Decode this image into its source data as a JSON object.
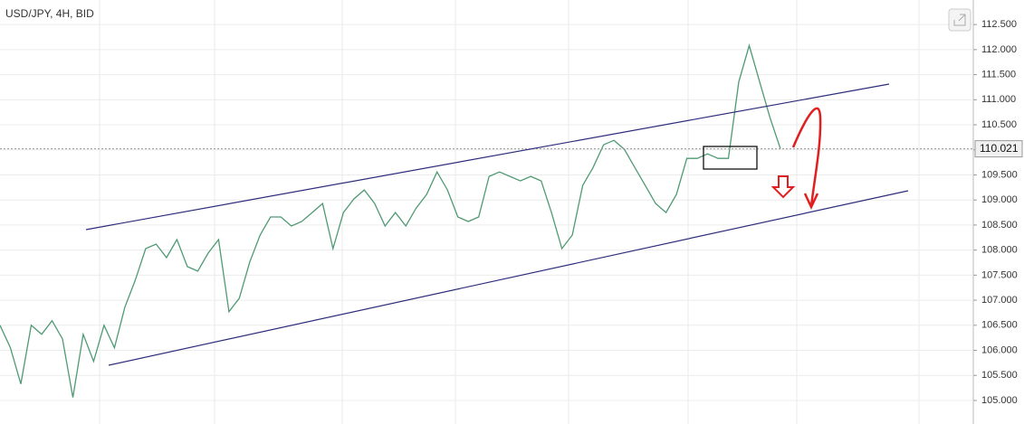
{
  "chart_data": {
    "type": "line",
    "title": "USD/JPY, 4H, BID",
    "color": "#4f9a74",
    "values": [
      106.5,
      106.05,
      105.33,
      106.5,
      106.32,
      106.59,
      106.23,
      105.06,
      106.32,
      105.78,
      106.5,
      106.05,
      106.86,
      107.4,
      108.03,
      108.12,
      107.85,
      108.21,
      107.67,
      107.58,
      107.94,
      108.21,
      106.77,
      107.04,
      107.76,
      108.3,
      108.66,
      108.66,
      108.48,
      108.57,
      108.75,
      108.93,
      108.03,
      108.75,
      109.02,
      109.2,
      108.93,
      108.48,
      108.75,
      108.48,
      108.84,
      109.11,
      109.56,
      109.2,
      108.66,
      108.57,
      108.66,
      109.47,
      109.56,
      109.47,
      109.38,
      109.47,
      109.38,
      108.75,
      108.03,
      108.3,
      109.29,
      109.65,
      110.1,
      110.19,
      110.01,
      109.65,
      109.29,
      108.93,
      108.75,
      109.11,
      109.83,
      109.83,
      109.92,
      109.83,
      109.83,
      111.36,
      112.08,
      111.36,
      110.64,
      110.02
    ],
    "ylim": [
      104.53,
      112.99
    ],
    "yticks": [
      {
        "value": 105,
        "label": "105.000"
      },
      {
        "value": 105.5,
        "label": "105.500"
      },
      {
        "value": 106,
        "label": "106.000"
      },
      {
        "value": 106.5,
        "label": "106.500"
      },
      {
        "value": 107,
        "label": "107.000"
      },
      {
        "value": 107.5,
        "label": "107.500"
      },
      {
        "value": 108,
        "label": "108.000"
      },
      {
        "value": 108.5,
        "label": "108.500"
      },
      {
        "value": 109,
        "label": "109.000"
      },
      {
        "value": 109.5,
        "label": "109.500"
      },
      {
        "value": 110,
        "label": "110.000"
      },
      {
        "value": 110.5,
        "label": "110.500"
      },
      {
        "value": 111,
        "label": "111.000"
      },
      {
        "value": 111.5,
        "label": "111.500"
      },
      {
        "value": 112,
        "label": "112.000"
      },
      {
        "value": 112.5,
        "label": "112.500"
      }
    ],
    "last_value": 110.021,
    "grid": true
  }
}
